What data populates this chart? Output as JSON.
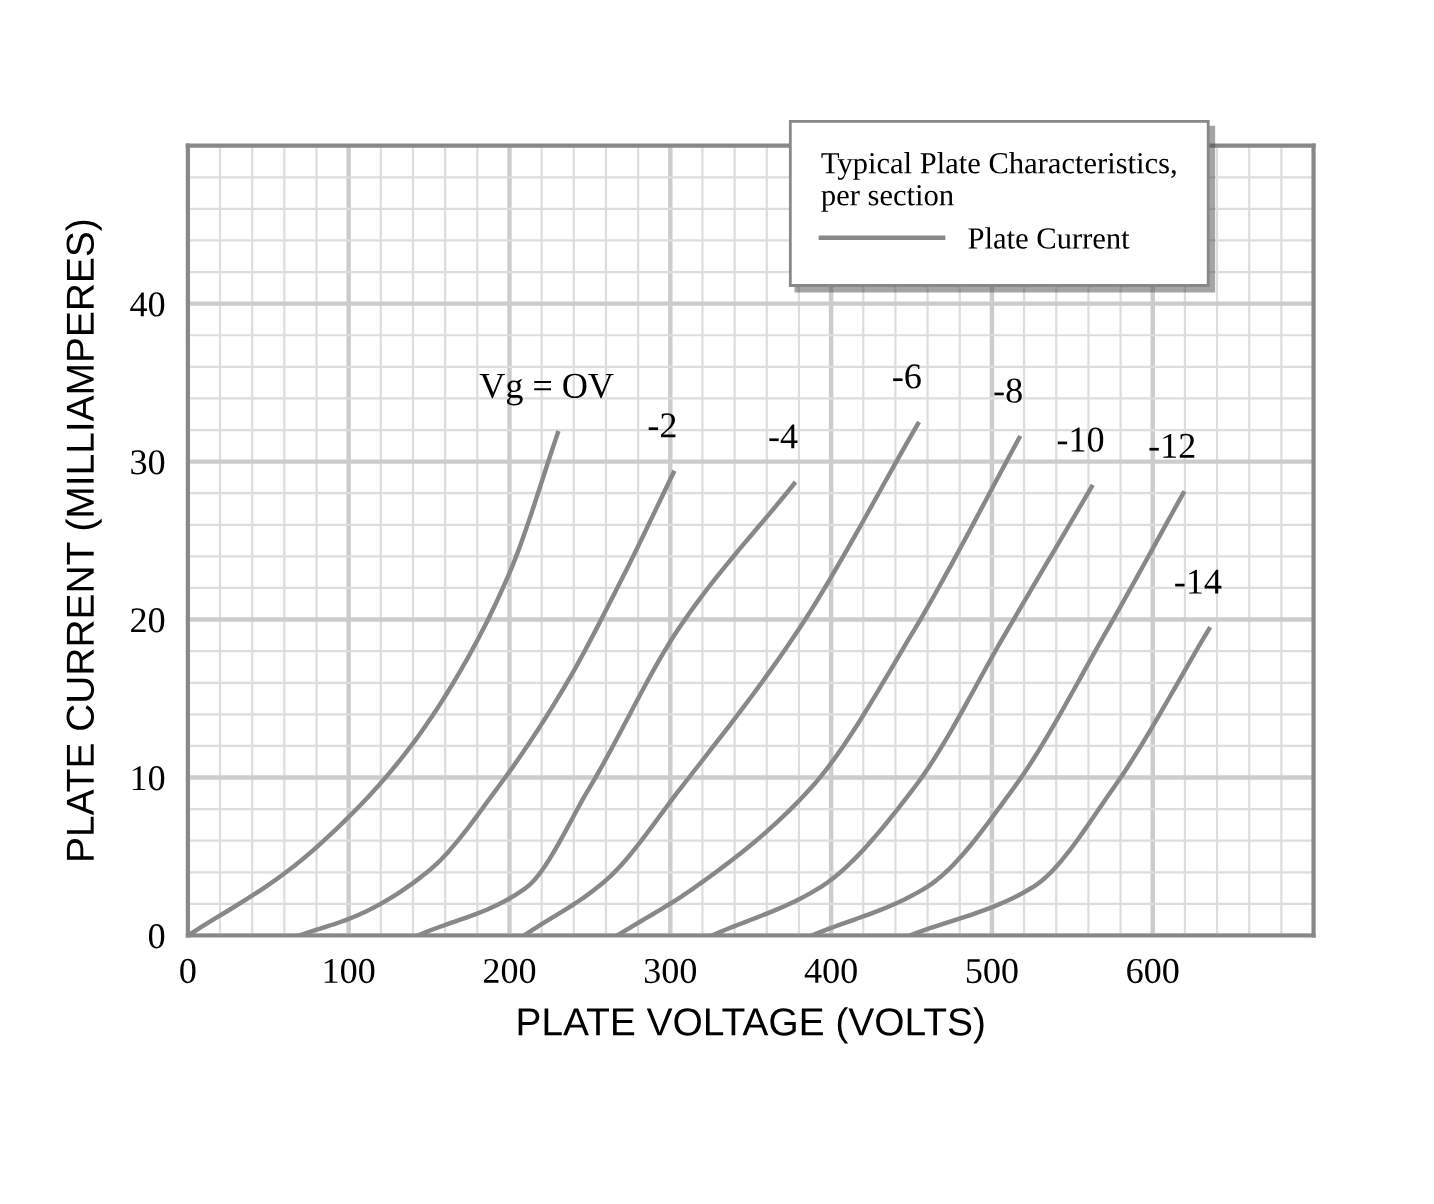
{
  "chart_data": {
    "type": "line",
    "legend_title": "Typical Plate Characteristics,\nper section",
    "xlabel": "PLATE VOLTAGE (VOLTS)",
    "ylabel": "PLATE CURRENT (MILLIAMPERES)",
    "xlim": [
      0,
      700
    ],
    "xticks": [
      0,
      100,
      200,
      300,
      400,
      500,
      600
    ],
    "ylim": [
      0,
      50
    ],
    "yticks": [
      0,
      10,
      20,
      30,
      40
    ],
    "grid": true,
    "legend": "top right",
    "marker": "none",
    "line_style": "solid",
    "series": [
      {
        "name": "Plate Current",
        "color": "#888888",
        "x": [
          0,
          61,
          98,
          135,
          168,
          201,
          230
        ],
        "values": [
          0,
          4.0,
          7.3,
          11.5,
          16.5,
          23.2,
          31.8
        ]
      },
      {
        "color": "#888888",
        "x": [
          69,
          106,
          151,
          193,
          234,
          271,
          302
        ],
        "values": [
          0,
          1.3,
          4.2,
          9.4,
          15.7,
          22.8,
          29.3
        ]
      },
      {
        "color": "#888888",
        "x": [
          143,
          210,
          250,
          305,
          377
        ],
        "values": [
          0,
          3.0,
          9.4,
          19.4,
          28.6
        ]
      },
      {
        "color": "#888888",
        "x": [
          209,
          260,
          307,
          380,
          454
        ],
        "values": [
          0,
          3.5,
          9.4,
          19.4,
          32.4
        ]
      },
      {
        "color": "#888888",
        "x": [
          267,
          316,
          388,
          452,
          517
        ],
        "values": [
          0,
          3.1,
          9.4,
          19.4,
          31.5
        ]
      },
      {
        "color": "#888888",
        "x": [
          326,
          394,
          452,
          510,
          562
        ],
        "values": [
          0,
          3.1,
          9.4,
          19.4,
          28.4
        ]
      },
      {
        "color": "#888888",
        "x": [
          388,
          460,
          514,
          572,
          619
        ],
        "values": [
          0,
          3.1,
          9.4,
          19.4,
          28.0
        ]
      },
      {
        "color": "#888888",
        "x": [
          449,
          526,
          576,
          635
        ],
        "values": [
          0,
          3.1,
          9.4,
          19.4
        ]
      }
    ],
    "annotations": [
      {
        "text": "Vg = OV",
        "x": 230,
        "y": 31.8
      },
      {
        "text": "-2",
        "x": 302,
        "y": 29.3
      },
      {
        "text": "-4",
        "x": 377,
        "y": 28.6
      },
      {
        "text": "-6",
        "x": 454,
        "y": 32.4
      },
      {
        "text": "-8",
        "x": 517,
        "y": 31.5
      },
      {
        "text": "-10",
        "x": 562,
        "y": 28.4
      },
      {
        "text": "-12",
        "x": 619,
        "y": 28.0
      },
      {
        "text": "-14",
        "x": 635,
        "y": 19.4
      }
    ]
  }
}
